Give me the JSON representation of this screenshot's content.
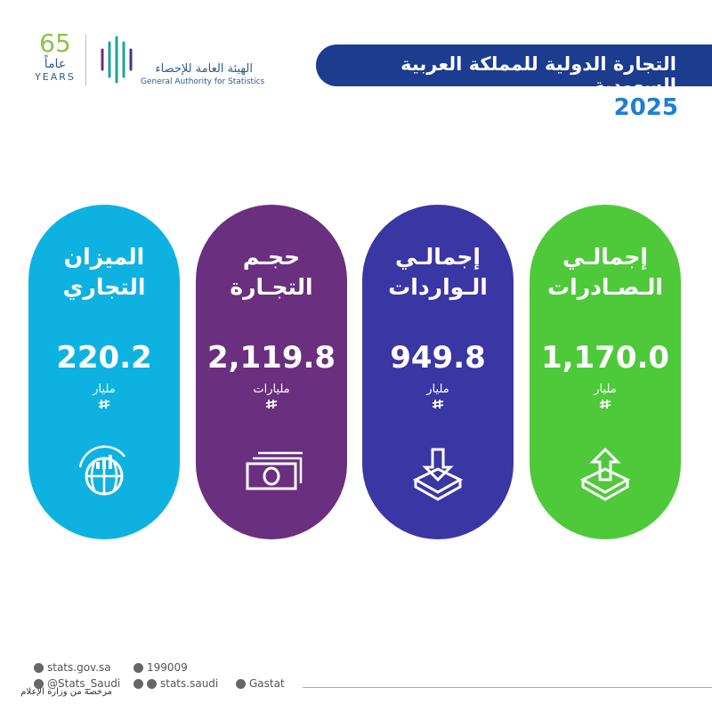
{
  "header": {
    "logo_number": "65",
    "logo_years_ar": "عاماً",
    "logo_years_en": "YEARS",
    "org_ar": "الهيئة العامة للإحصاء",
    "org_en": "General Authority for Statistics",
    "title": "التجارة الدولية للمملكة العربية السعودية",
    "year": "2025"
  },
  "cards": [
    {
      "label_line1": "الميزان",
      "label_line2": "التجاري",
      "value": "220.2",
      "unit": "مليار",
      "color": "#0eb2e0"
    },
    {
      "label_line1": "حجـم",
      "label_line2": "التجـارة",
      "value": "2,119.8",
      "unit": "مليارات",
      "color": "#6a2f7e"
    },
    {
      "label_line1": "إجمالـي",
      "label_line2": "الـواردات",
      "value": "949.8",
      "unit": "مليار",
      "color": "#3a36a3"
    },
    {
      "label_line1": "إجمالـي",
      "label_line2": "الـصـادرات",
      "value": "1,170.0",
      "unit": "مليار",
      "color": "#4ec93a"
    }
  ],
  "footer": {
    "website": "stats.gov.sa",
    "twitter": "@Stats_Saudi",
    "phone": "199009",
    "social": "stats.saudi",
    "linkedin": "Gastat",
    "watermark": "مرخصة من وزارة الإعلام"
  }
}
